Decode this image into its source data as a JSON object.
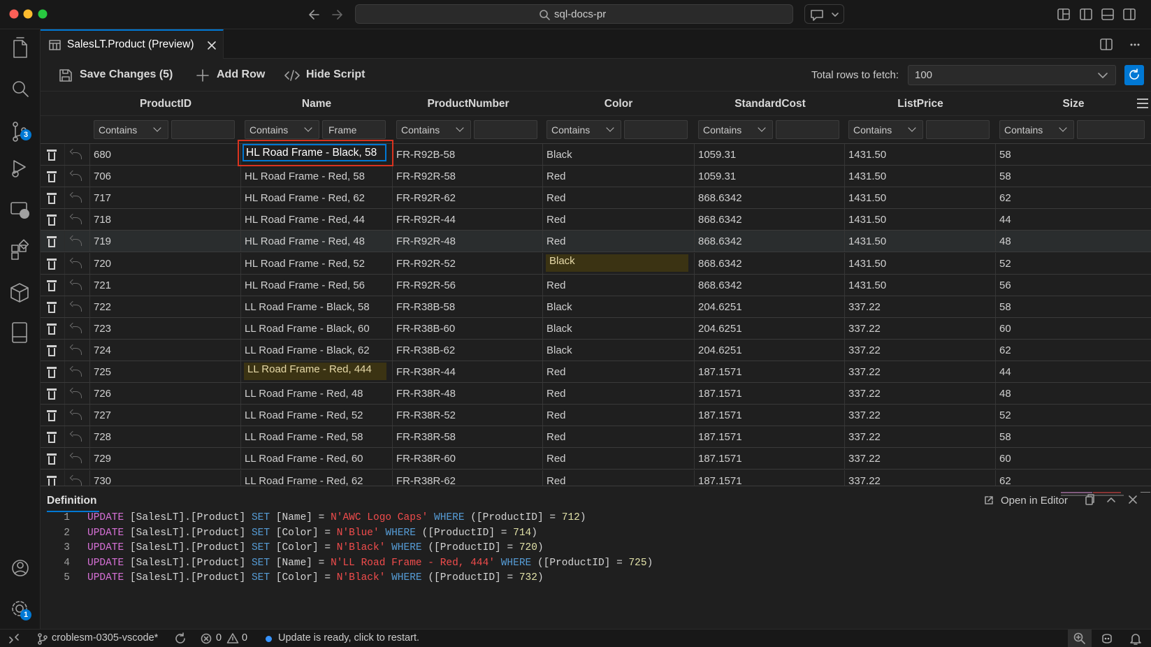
{
  "window": {
    "search": "sql-docs-pr"
  },
  "tab": {
    "title": "SalesLT.Product (Preview)"
  },
  "toolbar": {
    "save": "Save Changes (5)",
    "add_row": "Add Row",
    "hide_script": "Hide Script",
    "rows_label": "Total rows to fetch:",
    "rows_value": "100"
  },
  "activity": {
    "scm_badge": "3",
    "settings_badge": "1"
  },
  "grid": {
    "columns": [
      "ProductID",
      "Name",
      "ProductNumber",
      "Color",
      "StandardCost",
      "ListPrice",
      "Size"
    ],
    "filters": [
      {
        "op": "Contains"
      },
      {
        "op": "Contains",
        "text": "Frame"
      },
      {
        "op": "Contains"
      },
      {
        "op": "Contains"
      },
      {
        "op": "Contains"
      },
      {
        "op": "Contains"
      },
      {
        "op": "Contains"
      }
    ],
    "rows": [
      [
        "680",
        "HL Road Frame - Black, 58",
        "FR-R92B-58",
        "Black",
        "1059.31",
        "1431.50",
        "58"
      ],
      [
        "706",
        "HL Road Frame - Red, 58",
        "FR-R92R-58",
        "Red",
        "1059.31",
        "1431.50",
        "58"
      ],
      [
        "717",
        "HL Road Frame - Red, 62",
        "FR-R92R-62",
        "Red",
        "868.6342",
        "1431.50",
        "62"
      ],
      [
        "718",
        "HL Road Frame - Red, 44",
        "FR-R92R-44",
        "Red",
        "868.6342",
        "1431.50",
        "44"
      ],
      [
        "719",
        "HL Road Frame - Red, 48",
        "FR-R92R-48",
        "Red",
        "868.6342",
        "1431.50",
        "48"
      ],
      [
        "720",
        "HL Road Frame - Red, 52",
        "FR-R92R-52",
        "Black",
        "868.6342",
        "1431.50",
        "52"
      ],
      [
        "721",
        "HL Road Frame - Red, 56",
        "FR-R92R-56",
        "Red",
        "868.6342",
        "1431.50",
        "56"
      ],
      [
        "722",
        "LL Road Frame - Black, 58",
        "FR-R38B-58",
        "Black",
        "204.6251",
        "337.22",
        "58"
      ],
      [
        "723",
        "LL Road Frame - Black, 60",
        "FR-R38B-60",
        "Black",
        "204.6251",
        "337.22",
        "60"
      ],
      [
        "724",
        "LL Road Frame - Black, 62",
        "FR-R38B-62",
        "Black",
        "204.6251",
        "337.22",
        "62"
      ],
      [
        "725",
        "LL Road Frame - Red, 444",
        "FR-R38R-44",
        "Red",
        "187.1571",
        "337.22",
        "44"
      ],
      [
        "726",
        "LL Road Frame - Red, 48",
        "FR-R38R-48",
        "Red",
        "187.1571",
        "337.22",
        "48"
      ],
      [
        "727",
        "LL Road Frame - Red, 52",
        "FR-R38R-52",
        "Red",
        "187.1571",
        "337.22",
        "52"
      ],
      [
        "728",
        "LL Road Frame - Red, 58",
        "FR-R38R-58",
        "Red",
        "187.1571",
        "337.22",
        "58"
      ],
      [
        "729",
        "LL Road Frame - Red, 60",
        "FR-R38R-60",
        "Red",
        "187.1571",
        "337.22",
        "60"
      ],
      [
        "730",
        "LL Road Frame - Red, 62",
        "FR-R38R-62",
        "Red",
        "187.1571",
        "337.22",
        "62"
      ]
    ]
  },
  "definition": {
    "title": "Definition",
    "open": "Open in Editor",
    "lines": [
      {
        "number": 1,
        "segments": [
          {
            "text": "UPDATE",
            "color": "#d670d6"
          },
          {
            "text": " [SalesLT].[Product] ",
            "color": "#d4d4d4"
          },
          {
            "text": "SET",
            "color": "#569cd6"
          },
          {
            "text": " [Name] = ",
            "color": "#d4d4d4"
          },
          {
            "text": "N'AWC Logo Caps'",
            "color": "#f14c4c"
          },
          {
            "text": " WHERE",
            "color": "#569cd6"
          },
          {
            "text": " ([ProductID] = ",
            "color": "#d4d4d4"
          },
          {
            "text": "712",
            "color": "#e2e2a8"
          },
          {
            "text": ")",
            "color": "#d4d4d4"
          }
        ]
      },
      {
        "number": 2,
        "segments": [
          {
            "text": "UPDATE",
            "color": "#d670d6"
          },
          {
            "text": " [SalesLT].[Product] ",
            "color": "#d4d4d4"
          },
          {
            "text": "SET",
            "color": "#569cd6"
          },
          {
            "text": " [Color] = ",
            "color": "#d4d4d4"
          },
          {
            "text": "N'Blue'",
            "color": "#f14c4c"
          },
          {
            "text": " WHERE",
            "color": "#569cd6"
          },
          {
            "text": " ([ProductID] = ",
            "color": "#d4d4d4"
          },
          {
            "text": "714",
            "color": "#e2e2a8"
          },
          {
            "text": ")",
            "color": "#d4d4d4"
          }
        ]
      },
      {
        "number": 3,
        "segments": [
          {
            "text": "UPDATE",
            "color": "#d670d6"
          },
          {
            "text": " [SalesLT].[Product] ",
            "color": "#d4d4d4"
          },
          {
            "text": "SET",
            "color": "#569cd6"
          },
          {
            "text": " [Color] = ",
            "color": "#d4d4d4"
          },
          {
            "text": "N'Black'",
            "color": "#f14c4c"
          },
          {
            "text": " WHERE",
            "color": "#569cd6"
          },
          {
            "text": " ([ProductID] = ",
            "color": "#d4d4d4"
          },
          {
            "text": "720",
            "color": "#e2e2a8"
          },
          {
            "text": ")",
            "color": "#d4d4d4"
          }
        ]
      },
      {
        "number": 4,
        "segments": [
          {
            "text": "UPDATE",
            "color": "#d670d6"
          },
          {
            "text": " [SalesLT].[Product] ",
            "color": "#d4d4d4"
          },
          {
            "text": "SET",
            "color": "#569cd6"
          },
          {
            "text": " [Name] = ",
            "color": "#d4d4d4"
          },
          {
            "text": "N'LL Road Frame - Red, 444'",
            "color": "#f14c4c"
          },
          {
            "text": " WHERE",
            "color": "#569cd6"
          },
          {
            "text": " ([ProductID] = ",
            "color": "#d4d4d4"
          },
          {
            "text": "725",
            "color": "#e2e2a8"
          },
          {
            "text": ")",
            "color": "#d4d4d4"
          }
        ]
      },
      {
        "number": 5,
        "segments": [
          {
            "text": "UPDATE",
            "color": "#d670d6"
          },
          {
            "text": " [SalesLT].[Product] ",
            "color": "#d4d4d4"
          },
          {
            "text": "SET",
            "color": "#569cd6"
          },
          {
            "text": " [Color] = ",
            "color": "#d4d4d4"
          },
          {
            "text": "N'Black'",
            "color": "#f14c4c"
          },
          {
            "text": " WHERE",
            "color": "#569cd6"
          },
          {
            "text": " ([ProductID] = ",
            "color": "#d4d4d4"
          },
          {
            "text": "732",
            "color": "#e2e2a8"
          },
          {
            "text": ")",
            "color": "#d4d4d4"
          }
        ]
      }
    ]
  },
  "status": {
    "branch": "croblesm-0305-vscode*",
    "errors": "0",
    "warnings": "0",
    "message": "Update is ready, click to restart."
  }
}
